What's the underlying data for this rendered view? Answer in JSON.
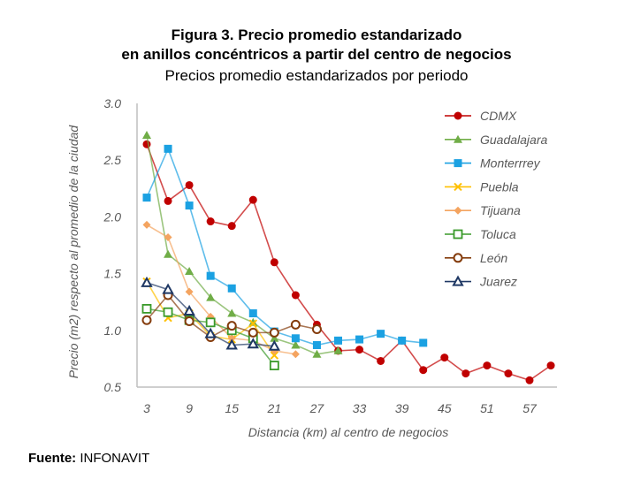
{
  "chart_data": {
    "type": "line",
    "title": "Figura 3. Precio promedio estandarizado",
    "title_line2": "en anillos concéntricos a partir del centro de negocios",
    "subtitle": "Precios promedio estandarizados por periodo",
    "xlabel": "Distancia (km) al centro de negocios",
    "ylabel": "Precio (m2) respecto al promedio de la ciudad",
    "xlim": [
      3,
      60
    ],
    "ylim": [
      0.5,
      3.0
    ],
    "xticks": [
      "3",
      "9",
      "15",
      "21",
      "27",
      "33",
      "39",
      "45",
      "51",
      "57"
    ],
    "xtick_values": [
      3,
      9,
      15,
      21,
      27,
      33,
      39,
      45,
      51,
      57
    ],
    "yticks": [
      "0.5",
      "1.0",
      "1.5",
      "2.0",
      "2.5",
      "3.0"
    ],
    "ytick_values": [
      0.5,
      1.0,
      1.5,
      2.0,
      2.5,
      3.0
    ],
    "legend_position": "right",
    "series": [
      {
        "name": "CDMX",
        "color": "#c00000",
        "marker": "circle",
        "x": [
          3,
          6,
          9,
          12,
          15,
          18,
          21,
          24,
          27,
          30,
          33,
          36,
          39,
          42,
          45,
          48,
          51,
          54,
          57,
          60
        ],
        "values": [
          2.64,
          2.14,
          2.28,
          1.96,
          1.92,
          2.15,
          1.6,
          1.31,
          1.05,
          0.82,
          0.83,
          0.73,
          0.91,
          0.65,
          0.76,
          0.62,
          0.69,
          0.62,
          0.56,
          0.69
        ]
      },
      {
        "name": "Guadalajara",
        "color": "#70ad47",
        "marker": "triangle",
        "x": [
          3,
          6,
          9,
          12,
          15,
          18,
          21,
          24,
          27,
          30
        ],
        "values": [
          2.72,
          1.67,
          1.52,
          1.29,
          1.15,
          1.07,
          0.93,
          0.87,
          0.79,
          0.82
        ]
      },
      {
        "name": "Monterrrey",
        "color": "#1ba1e2",
        "marker": "square",
        "x": [
          3,
          6,
          9,
          12,
          15,
          18,
          21,
          24,
          27,
          30,
          33,
          36,
          39,
          42
        ],
        "values": [
          2.17,
          2.6,
          2.1,
          1.48,
          1.37,
          1.15,
          0.99,
          0.93,
          0.87,
          0.91,
          0.92,
          0.97,
          0.91,
          0.89
        ]
      },
      {
        "name": "Puebla",
        "color": "#ffc000",
        "marker": "x",
        "x": [
          3,
          6,
          9,
          12,
          15,
          18,
          21
        ],
        "values": [
          1.43,
          1.11,
          1.15,
          0.95,
          0.92,
          1.06,
          0.78
        ]
      },
      {
        "name": "Tijuana",
        "color": "#f4a460",
        "marker": "diamond",
        "x": [
          3,
          6,
          9,
          12,
          15,
          18,
          21,
          24
        ],
        "values": [
          1.93,
          1.82,
          1.34,
          1.12,
          0.93,
          0.91,
          0.82,
          0.79
        ]
      },
      {
        "name": "Toluca",
        "color": "#3a9a2a",
        "marker": "open-square",
        "x": [
          3,
          6,
          9,
          12,
          15,
          18,
          21
        ],
        "values": [
          1.19,
          1.16,
          1.09,
          1.07,
          1.0,
          0.93,
          0.69
        ]
      },
      {
        "name": "León",
        "color": "#843c0c",
        "marker": "open-circle",
        "x": [
          3,
          6,
          9,
          12,
          15,
          18,
          21,
          24,
          27
        ],
        "values": [
          1.09,
          1.31,
          1.08,
          0.94,
          1.04,
          0.98,
          0.98,
          1.05,
          1.01
        ]
      },
      {
        "name": "Juarez",
        "color": "#1f3864",
        "marker": "open-triangle",
        "x": [
          3,
          6,
          9,
          12,
          15,
          18,
          21
        ],
        "values": [
          1.42,
          1.36,
          1.17,
          0.97,
          0.87,
          0.88,
          0.86
        ]
      }
    ]
  },
  "source": {
    "label": "Fuente:",
    "value": "INFONAVIT"
  }
}
